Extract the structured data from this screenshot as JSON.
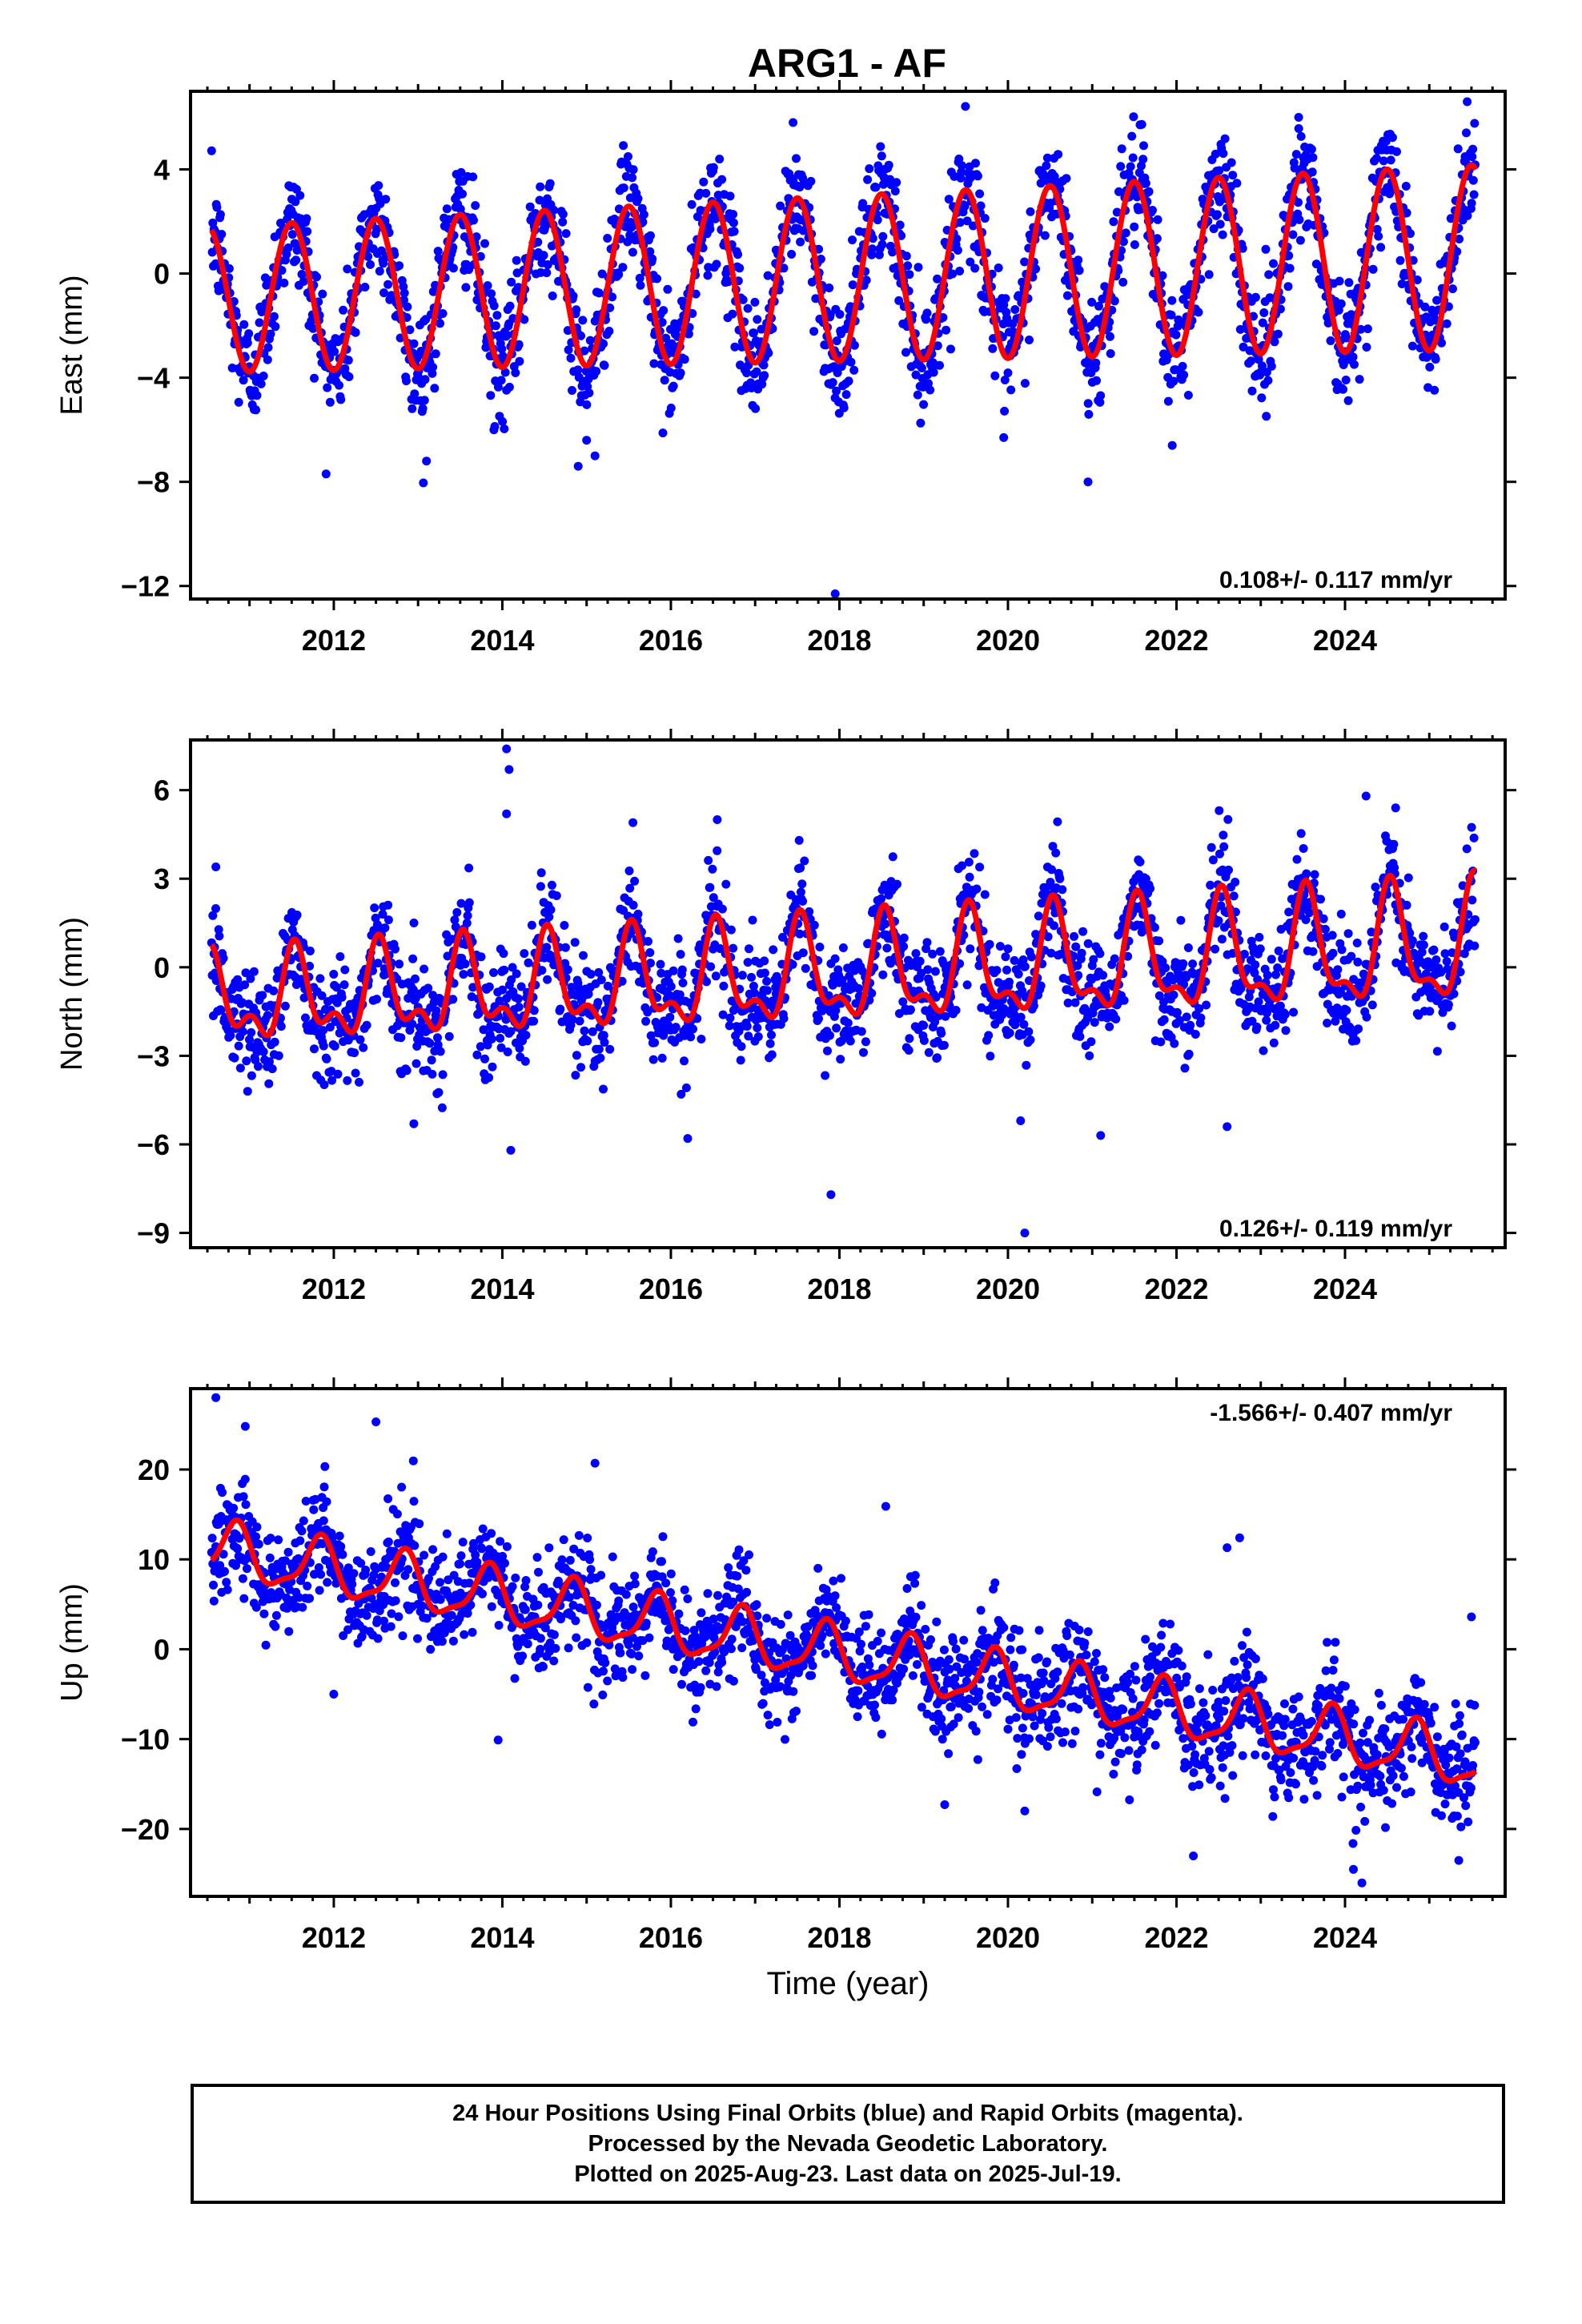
{
  "title": "ARG1 - AF",
  "colors": {
    "final_orbits": "#0000ff",
    "fit": "#ff0000",
    "axes": "#000000"
  },
  "chart_data": [
    {
      "type": "scatter",
      "component": "east",
      "ylabel": "East (mm)",
      "xlabel": "",
      "xlim": [
        2010.3,
        2025.9
      ],
      "ylim": [
        -12.5,
        7.0
      ],
      "yticks": [
        4,
        0,
        -4,
        -8,
        -12
      ],
      "ytick_labels": [
        "4",
        "0",
        "−4",
        "−8",
        "−12"
      ],
      "xticks": [
        2012,
        2014,
        2016,
        2018,
        2020,
        2022,
        2024
      ],
      "rate_label": "0.108+/- 0.117 mm/yr",
      "rate_position": "bottom-right",
      "start": 2010.55,
      "end": 2025.55,
      "fit": {
        "intercept": -1.0,
        "trend": 0.108,
        "annual_amp": 2.8,
        "annual_phase": -0.25,
        "annual_amp_growth": 0.05,
        "semi_amp": 0.0,
        "semi_phase": 0.0
      },
      "noise_sd": 1.1,
      "sample_step": 0.007,
      "outliers": [
        [
          2017.95,
          -12.3
        ],
        [
          2020.95,
          -8.0
        ],
        [
          2013.1,
          -7.2
        ],
        [
          2014.9,
          -7.4
        ],
        [
          2015.1,
          -7.0
        ],
        [
          2017.45,
          5.8
        ],
        [
          2025.45,
          6.6
        ],
        [
          2023.45,
          6.0
        ],
        [
          2021.95,
          -6.6
        ],
        [
          2019.95,
          -6.3
        ],
        [
          2015.0,
          -6.4
        ],
        [
          2013.9,
          -6.0
        ]
      ]
    },
    {
      "type": "scatter",
      "component": "north",
      "ylabel": "North (mm)",
      "xlabel": "",
      "xlim": [
        2010.3,
        2025.9
      ],
      "ylim": [
        -9.5,
        7.7
      ],
      "yticks": [
        6,
        3,
        0,
        -3,
        -6,
        -9
      ],
      "ytick_labels": [
        "6",
        "3",
        "0",
        "−3",
        "−6",
        "−9"
      ],
      "xticks": [
        2012,
        2014,
        2016,
        2018,
        2020,
        2022,
        2024
      ],
      "rate_label": "0.126+/- 0.119 mm/yr",
      "rate_position": "bottom-right",
      "start": 2010.55,
      "end": 2025.55,
      "fit": {
        "intercept": -1.2,
        "trend": 0.126,
        "annual_amp": 1.25,
        "annual_phase": -0.3,
        "annual_amp_growth": 0.04,
        "semi_amp": 0.75,
        "semi_phase": 0.1
      },
      "noise_sd": 0.95,
      "sample_step": 0.007,
      "outliers": [
        [
          2014.05,
          7.4
        ],
        [
          2014.08,
          6.7
        ],
        [
          2014.05,
          5.2
        ],
        [
          2017.9,
          -7.7
        ],
        [
          2020.2,
          -9.0
        ],
        [
          2020.15,
          -5.2
        ],
        [
          2014.1,
          -6.2
        ],
        [
          2024.25,
          5.8
        ],
        [
          2012.95,
          -5.3
        ],
        [
          2016.2,
          -5.8
        ],
        [
          2021.1,
          -5.7
        ],
        [
          2022.6,
          -5.4
        ],
        [
          2010.6,
          3.4
        ],
        [
          2024.6,
          5.4
        ],
        [
          2016.55,
          5.0
        ],
        [
          2015.55,
          4.9
        ]
      ]
    },
    {
      "type": "scatter",
      "component": "up",
      "ylabel": "Up (mm)",
      "xlabel": "Time (year)",
      "xlim": [
        2010.3,
        2025.9
      ],
      "ylim": [
        -27.5,
        29.0
      ],
      "yticks": [
        20,
        10,
        0,
        -10,
        -20
      ],
      "ytick_labels": [
        "20",
        "10",
        "0",
        "−10",
        "−20"
      ],
      "xticks": [
        2012,
        2014,
        2016,
        2018,
        2020,
        2022,
        2024
      ],
      "rate_label": "-1.566+/- 0.407 mm/yr",
      "rate_position": "top-right",
      "start": 2010.55,
      "end": 2025.55,
      "fit": {
        "intercept": 11.0,
        "trend": -1.566,
        "annual_amp": 3.0,
        "annual_phase": 0.42,
        "annual_amp_growth": 0.0,
        "semi_amp": 0.9,
        "semi_phase": 0.25
      },
      "noise_sd": 3.0,
      "sample_step": 0.007,
      "outliers": [
        [
          2010.6,
          28.0
        ],
        [
          2012.5,
          25.3
        ],
        [
          2010.95,
          24.8
        ],
        [
          2015.1,
          20.7
        ],
        [
          2018.55,
          15.9
        ],
        [
          2022.6,
          11.3
        ],
        [
          2022.75,
          12.4
        ],
        [
          2022.2,
          -23.0
        ],
        [
          2024.2,
          -26.0
        ],
        [
          2024.1,
          -24.5
        ],
        [
          2025.5,
          3.6
        ],
        [
          2013.95,
          -10.1
        ],
        [
          2019.25,
          -17.3
        ],
        [
          2020.2,
          -18.0
        ],
        [
          2012.0,
          -5.0
        ],
        [
          2025.35,
          -23.5
        ]
      ]
    }
  ],
  "xtick_labels": [
    "2012",
    "2014",
    "2016",
    "2018",
    "2020",
    "2022",
    "2024"
  ],
  "footer": {
    "line1": "24 Hour Positions Using Final Orbits (blue) and Rapid Orbits (magenta).",
    "line2": "Processed by the Nevada Geodetic Laboratory.",
    "line3": "Plotted on 2025-Aug-23. Last data on 2025-Jul-19."
  }
}
